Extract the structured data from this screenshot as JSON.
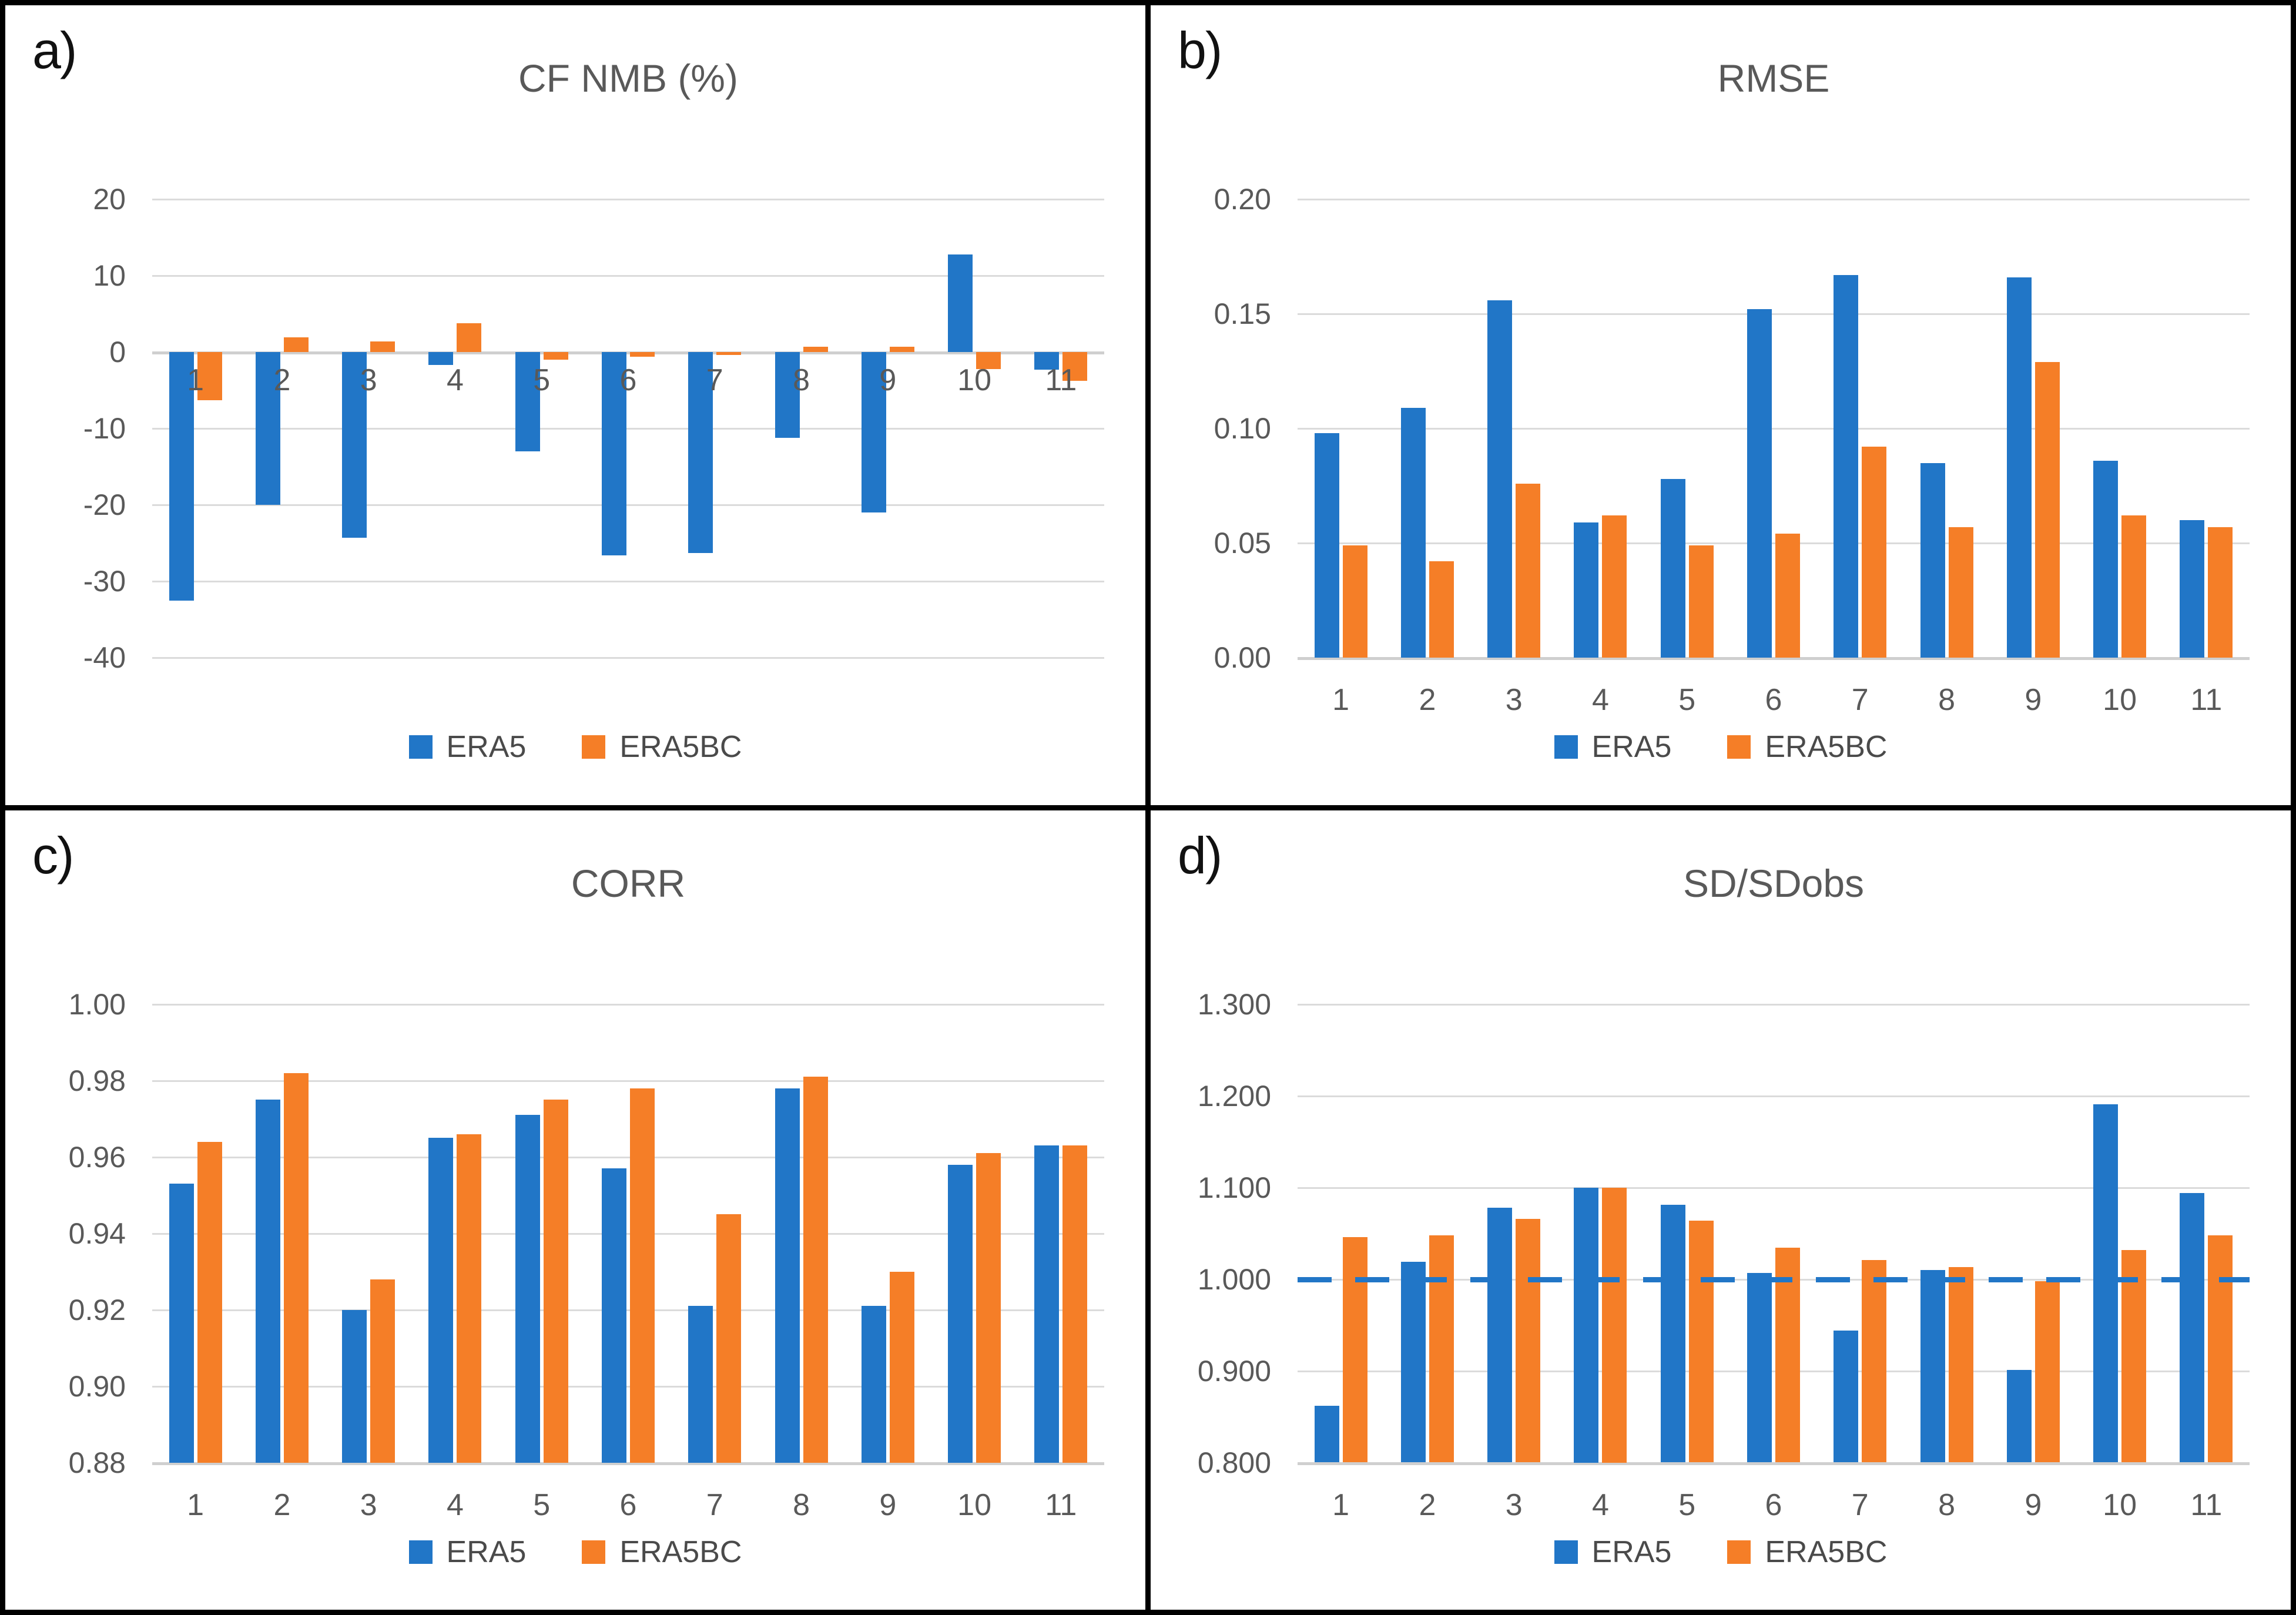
{
  "figure": {
    "background": "#ffffff",
    "border_color": "#000000"
  },
  "colors": {
    "era5": "#2176C7",
    "era5bc": "#F57E27",
    "grid": "#DBDBDB",
    "axis_text": "#595959",
    "panel_label": "#111111",
    "ref_line": "#2176C7"
  },
  "legend": {
    "era5_label": "ERA5",
    "era5bc_label": "ERA5BC"
  },
  "chart_data": [
    {
      "panel_label": "a)",
      "title": "CF NMB (%)",
      "type": "bar",
      "categories": [
        "1",
        "2",
        "3",
        "4",
        "5",
        "6",
        "7",
        "8",
        "9",
        "10",
        "11"
      ],
      "series": [
        {
          "name": "ERA5",
          "color_key": "era5",
          "values": [
            -32.5,
            -20.0,
            -24.3,
            -1.7,
            -13.0,
            -26.6,
            -26.3,
            -11.2,
            -21.0,
            12.8,
            -2.3
          ]
        },
        {
          "name": "ERA5BC",
          "color_key": "era5bc",
          "values": [
            -6.3,
            1.9,
            1.4,
            3.8,
            -1.0,
            -0.6,
            -0.4,
            0.7,
            0.7,
            -2.2,
            -3.8
          ]
        }
      ],
      "ylim": [
        -40,
        20
      ],
      "yticks": [
        20,
        10,
        0,
        -10,
        -20,
        -30,
        -40
      ],
      "tick_decimals": 0,
      "baseline": 0,
      "x_labels_at_zero": true,
      "ref_line": null,
      "grid": true,
      "legend_position": "bottom"
    },
    {
      "panel_label": "b)",
      "title": "RMSE",
      "type": "bar",
      "categories": [
        "1",
        "2",
        "3",
        "4",
        "5",
        "6",
        "7",
        "8",
        "9",
        "10",
        "11"
      ],
      "series": [
        {
          "name": "ERA5",
          "color_key": "era5",
          "values": [
            0.098,
            0.109,
            0.156,
            0.059,
            0.078,
            0.152,
            0.167,
            0.085,
            0.166,
            0.086,
            0.06
          ]
        },
        {
          "name": "ERA5BC",
          "color_key": "era5bc",
          "values": [
            0.049,
            0.042,
            0.076,
            0.062,
            0.049,
            0.054,
            0.092,
            0.057,
            0.129,
            0.062,
            0.057
          ]
        }
      ],
      "ylim": [
        0,
        0.2
      ],
      "yticks": [
        0.2,
        0.15,
        0.1,
        0.05,
        0.0
      ],
      "tick_decimals": 2,
      "baseline": 0,
      "x_labels_at_zero": false,
      "ref_line": null,
      "grid": true,
      "legend_position": "bottom"
    },
    {
      "panel_label": "c)",
      "title": "CORR",
      "type": "bar",
      "categories": [
        "1",
        "2",
        "3",
        "4",
        "5",
        "6",
        "7",
        "8",
        "9",
        "10",
        "11"
      ],
      "series": [
        {
          "name": "ERA5",
          "color_key": "era5",
          "values": [
            0.953,
            0.975,
            0.92,
            0.965,
            0.971,
            0.957,
            0.921,
            0.978,
            0.921,
            0.958,
            0.963
          ]
        },
        {
          "name": "ERA5BC",
          "color_key": "era5bc",
          "values": [
            0.964,
            0.982,
            0.928,
            0.966,
            0.975,
            0.978,
            0.945,
            0.981,
            0.93,
            0.961,
            0.963
          ]
        }
      ],
      "ylim": [
        0.88,
        1.0
      ],
      "yticks": [
        1.0,
        0.98,
        0.96,
        0.94,
        0.92,
        0.9,
        0.88
      ],
      "tick_decimals": 2,
      "baseline": 0.88,
      "x_labels_at_zero": false,
      "ref_line": null,
      "grid": true,
      "legend_position": "bottom"
    },
    {
      "panel_label": "d)",
      "title": "SD/SDobs",
      "type": "bar",
      "categories": [
        "1",
        "2",
        "3",
        "4",
        "5",
        "6",
        "7",
        "8",
        "9",
        "10",
        "11"
      ],
      "series": [
        {
          "name": "ERA5",
          "color_key": "era5",
          "values": [
            0.862,
            1.019,
            1.078,
            1.1,
            1.081,
            1.007,
            0.944,
            1.01,
            0.901,
            1.191,
            1.094
          ]
        },
        {
          "name": "ERA5BC",
          "color_key": "era5bc",
          "values": [
            1.046,
            1.048,
            1.066,
            1.1,
            1.064,
            1.034,
            1.021,
            1.013,
            0.998,
            1.032,
            1.048
          ]
        }
      ],
      "ylim": [
        0.8,
        1.3
      ],
      "yticks": [
        1.3,
        1.2,
        1.1,
        1.0,
        0.9,
        0.8
      ],
      "tick_decimals": 3,
      "baseline": 0.8,
      "x_labels_at_zero": false,
      "ref_line": 1.0,
      "grid": true,
      "legend_position": "bottom"
    }
  ]
}
